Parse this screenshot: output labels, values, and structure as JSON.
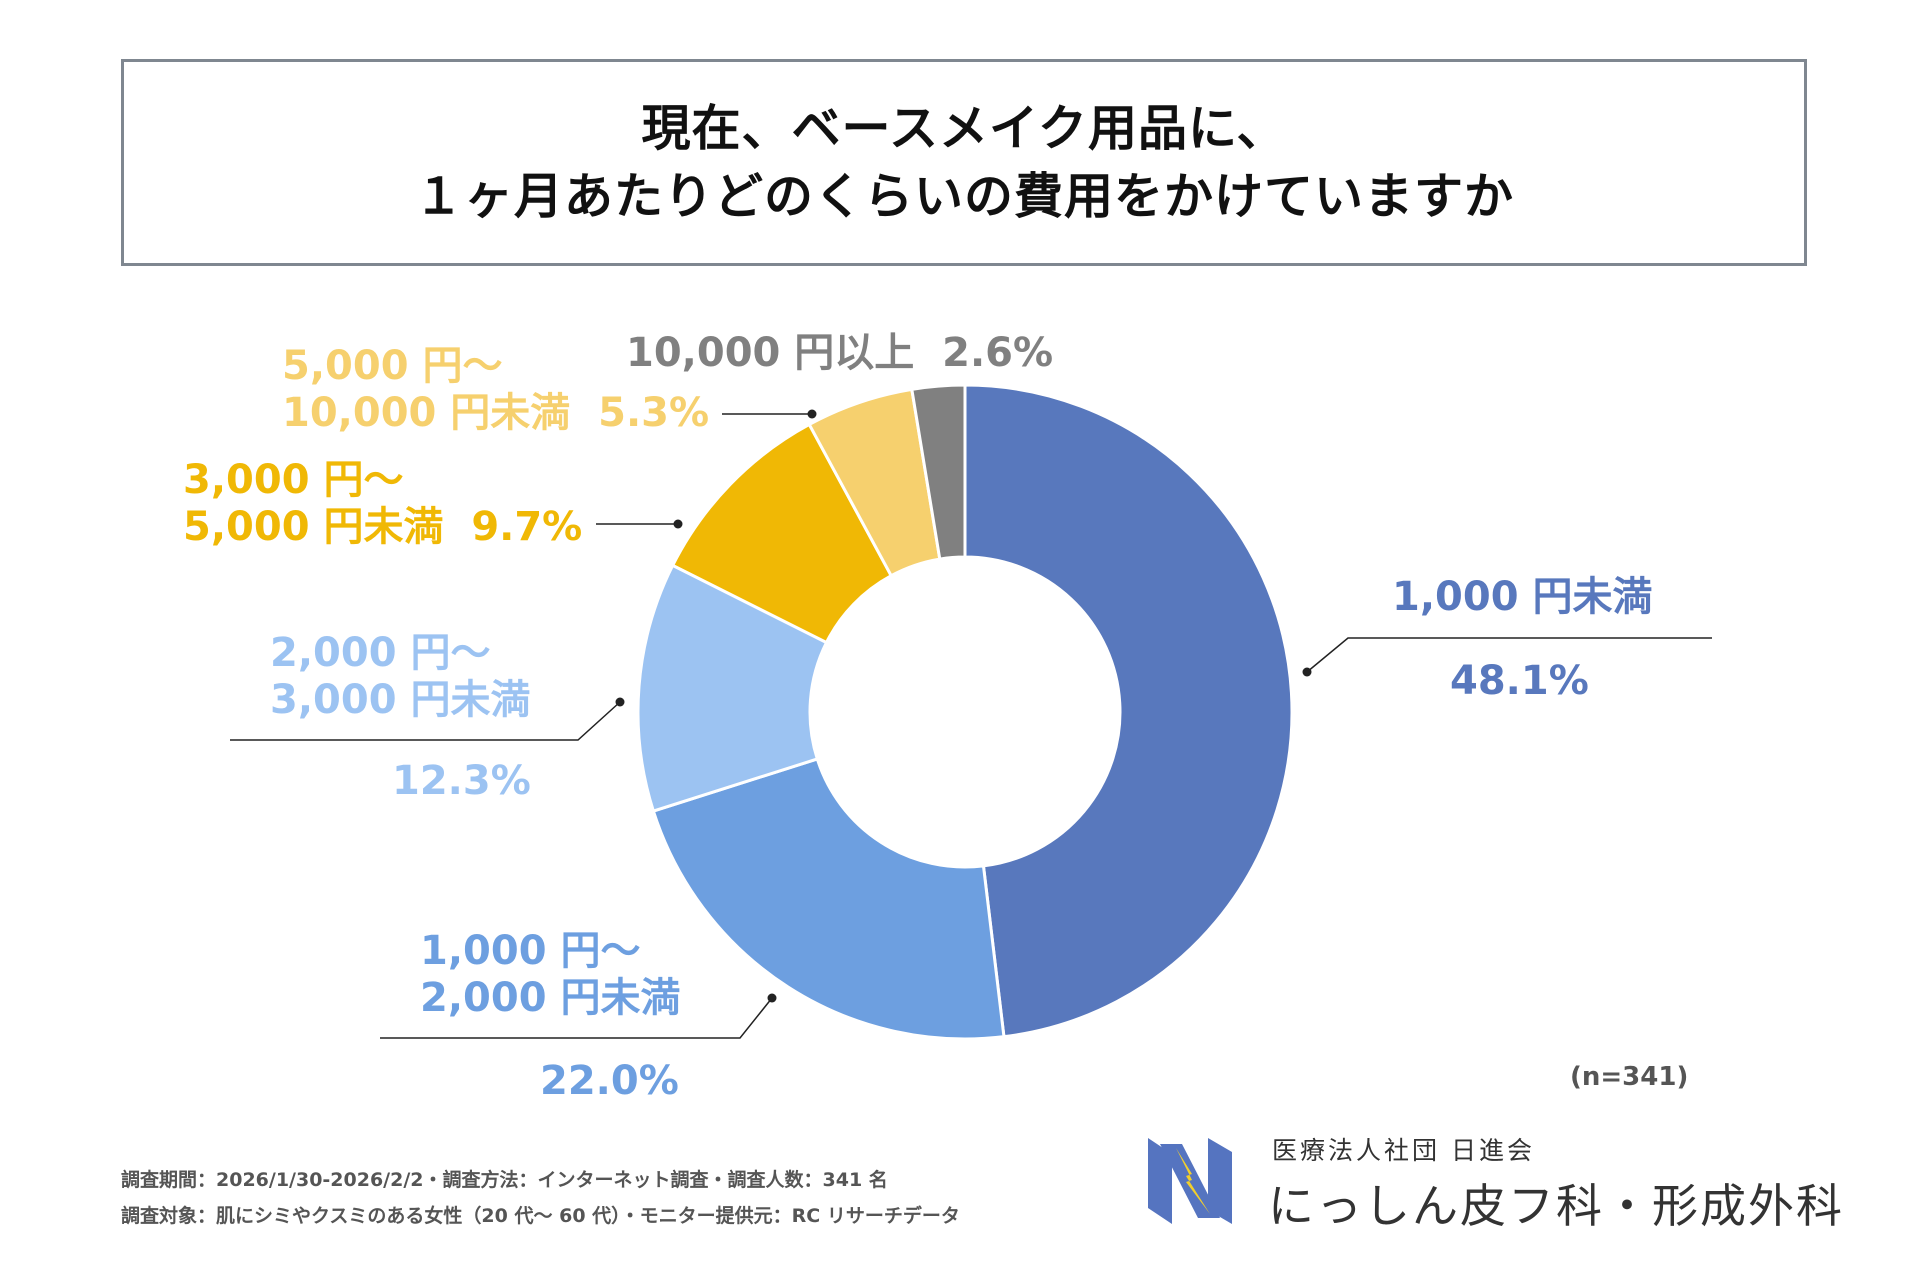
{
  "title": {
    "line1": "現在、ベースメイク用品に、",
    "line2": "１ヶ月あたりどのくらいの費用をかけていますか"
  },
  "chart_data": {
    "type": "donut",
    "series": [
      {
        "label_line1": "1,000 円未満",
        "label_line2": "",
        "value": 48.1,
        "value_text": "48.1%",
        "color": "#5878bd"
      },
      {
        "label_line1": "1,000 円～",
        "label_line2": "2,000 円未満",
        "value": 22.0,
        "value_text": "22.0%",
        "color": "#6d9fe0"
      },
      {
        "label_line1": "2,000 円～",
        "label_line2": "3,000 円未満",
        "value": 12.3,
        "value_text": "12.3%",
        "color": "#9cc3f2"
      },
      {
        "label_line1": "3,000 円～",
        "label_line2": "5,000 円未満",
        "value": 9.7,
        "value_text": "9.7%",
        "color": "#f0b805"
      },
      {
        "label_line1": "5,000 円～",
        "label_line2": "10,000 円未満",
        "value": 5.3,
        "value_text": "5.3%",
        "color": "#f6d06e"
      },
      {
        "label_line1": "10,000 円以上",
        "label_line2": "",
        "value": 2.6,
        "value_text": "2.6%",
        "color": "#808080"
      }
    ],
    "n_label": "(n=341)"
  },
  "footer": {
    "line1": "調査期間：2026/1/30-2026/2/2・調査方法：インターネット調査・調査人数：341 名",
    "line2": "調査対象：肌にシミやクスミのある女性（20 代～ 60 代）・モニター提供元：RC リサーチデータ"
  },
  "org": {
    "name_small": "医療法人社団 日進会",
    "name_large": "にっしん皮フ科・形成外科"
  },
  "colors": {
    "logo_blue": "#5574c0",
    "logo_yellow": "#f2cf2c",
    "leader_line": "#222222",
    "border": "#7f8790"
  }
}
